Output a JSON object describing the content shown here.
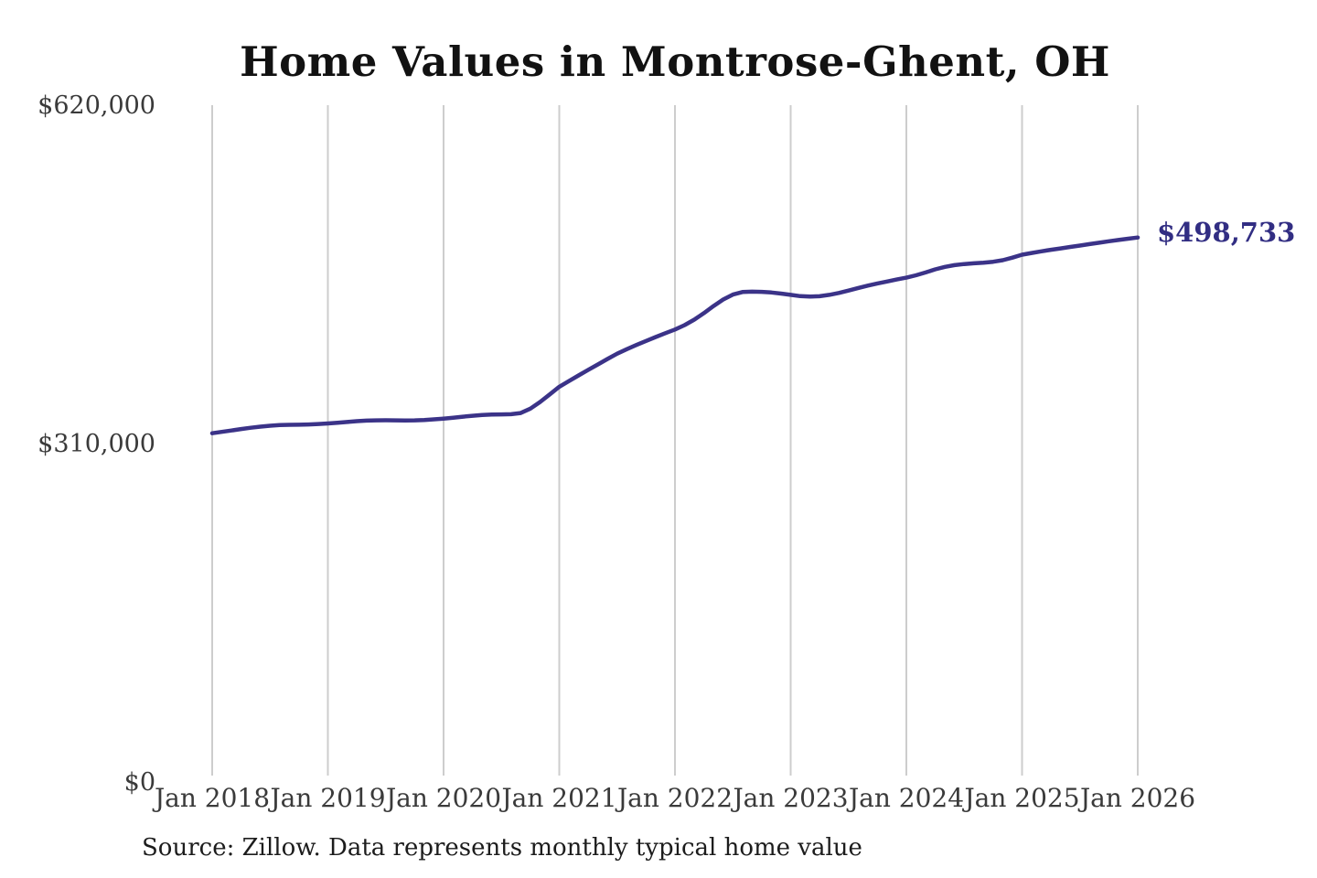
{
  "page": {
    "background": "#ffffff"
  },
  "colors": {
    "line": "#3b3388",
    "annotation": "#322e83",
    "gridline": "#cdcdcd",
    "title": "#121212",
    "tick_label": "#3a3a3a",
    "source": "#1c1c1c"
  },
  "chart_data": {
    "type": "line",
    "title": "Home Values in Montrose-Ghent, OH",
    "source_note": "Source: Zillow. Data represents monthly typical home value",
    "end_label": "$498,733",
    "end_value": 498733,
    "unit": "USD",
    "xlabel": "",
    "ylabel": "",
    "ylim": [
      0,
      620000
    ],
    "grid": "vertical-only",
    "legend": "none",
    "y_ticks": [
      {
        "label": "$620,000",
        "value": 620000
      },
      {
        "label": "$310,000",
        "value": 310000
      },
      {
        "label": "$0",
        "value": 0
      }
    ],
    "x_ticks": [
      {
        "label": "Jan 2018",
        "month_index": 0
      },
      {
        "label": "Jan 2019",
        "month_index": 12
      },
      {
        "label": "Jan 2020",
        "month_index": 24
      },
      {
        "label": "Jan 2021",
        "month_index": 36
      },
      {
        "label": "Jan 2022",
        "month_index": 48
      },
      {
        "label": "Jan 2023",
        "month_index": 60
      },
      {
        "label": "Jan 2024",
        "month_index": 72
      },
      {
        "label": "Jan 2025",
        "month_index": 84
      },
      {
        "label": "Jan 2026",
        "month_index": 96
      }
    ],
    "months": [
      "Jan 2018",
      "Feb 2018",
      "Mar 2018",
      "Apr 2018",
      "May 2018",
      "Jun 2018",
      "Jul 2018",
      "Aug 2018",
      "Sep 2018",
      "Oct 2018",
      "Nov 2018",
      "Dec 2018",
      "Jan 2019",
      "Feb 2019",
      "Mar 2019",
      "Apr 2019",
      "May 2019",
      "Jun 2019",
      "Jul 2019",
      "Aug 2019",
      "Sep 2019",
      "Oct 2019",
      "Nov 2019",
      "Dec 2019",
      "Jan 2020",
      "Feb 2020",
      "Mar 2020",
      "Apr 2020",
      "May 2020",
      "Jun 2020",
      "Jul 2020",
      "Aug 2020",
      "Sep 2020",
      "Oct 2020",
      "Nov 2020",
      "Dec 2020",
      "Jan 2021",
      "Feb 2021",
      "Mar 2021",
      "Apr 2021",
      "May 2021",
      "Jun 2021",
      "Jul 2021",
      "Aug 2021",
      "Sep 2021",
      "Oct 2021",
      "Nov 2021",
      "Dec 2021",
      "Jan 2022",
      "Feb 2022",
      "Mar 2022",
      "Apr 2022",
      "May 2022",
      "Jun 2022",
      "Jul 2022",
      "Aug 2022",
      "Sep 2022",
      "Oct 2022",
      "Nov 2022",
      "Dec 2022",
      "Jan 2023",
      "Feb 2023",
      "Mar 2023",
      "Apr 2023",
      "May 2023",
      "Jun 2023",
      "Jul 2023",
      "Aug 2023",
      "Sep 2023",
      "Oct 2023",
      "Nov 2023",
      "Dec 2023",
      "Jan 2024",
      "Feb 2024",
      "Mar 2024",
      "Apr 2024",
      "May 2024",
      "Jun 2024",
      "Jul 2024",
      "Aug 2024",
      "Sep 2024",
      "Oct 2024",
      "Nov 2024",
      "Dec 2024",
      "Jan 2025",
      "Feb 2025",
      "Mar 2025",
      "Apr 2025",
      "May 2025",
      "Jun 2025",
      "Jul 2025",
      "Aug 2025",
      "Sep 2025",
      "Oct 2025",
      "Nov 2025",
      "Dec 2025",
      "Jan 2026"
    ],
    "values": [
      319500,
      320700,
      322000,
      323300,
      324500,
      325500,
      326300,
      326900,
      327200,
      327300,
      327500,
      327900,
      328400,
      329100,
      329800,
      330500,
      331000,
      331300,
      331400,
      331300,
      331200,
      331300,
      331600,
      332200,
      332900,
      333700,
      334600,
      335500,
      336200,
      336600,
      336700,
      336900,
      338000,
      342000,
      348000,
      355000,
      362000,
      367200,
      372400,
      377500,
      382500,
      387500,
      392400,
      396500,
      400300,
      404000,
      407600,
      411100,
      414500,
      418500,
      423500,
      429500,
      436000,
      442000,
      446500,
      448800,
      449200,
      449000,
      448400,
      447400,
      446200,
      445100,
      444600,
      445000,
      446200,
      448000,
      450200,
      452500,
      454700,
      456700,
      458500,
      460300,
      462000,
      464200,
      466800,
      469600,
      471900,
      473500,
      474500,
      475100,
      475700,
      476600,
      478000,
      480300,
      483000,
      484600,
      486100,
      487500,
      488800,
      490100,
      491400,
      492700,
      494000,
      495300,
      496500,
      497700,
      498733
    ]
  }
}
